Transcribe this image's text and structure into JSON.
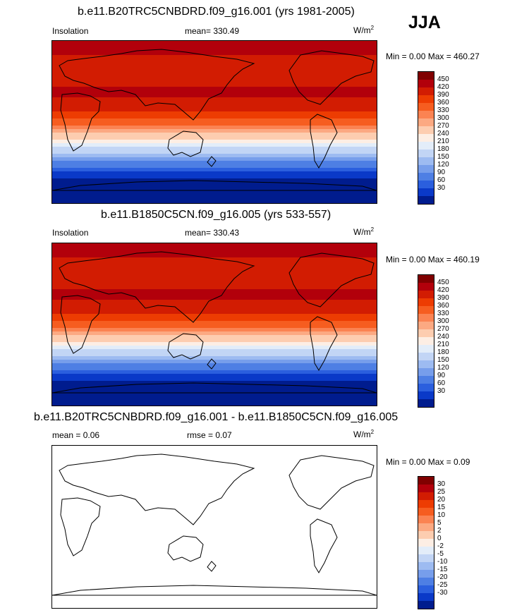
{
  "season": "JJA",
  "panels": [
    {
      "title": "b.e11.B20TRC5CNBDRD.f09_g16.001 (yrs 1981-2005)",
      "left_label": "Insolation",
      "center_label": "mean= 330.49",
      "units_base": "W/m",
      "units_exp": "2",
      "minmax": "Min =   0.00 Max = 460.27",
      "colorbar_labels": [
        "450",
        "420",
        "390",
        "360",
        "330",
        "300",
        "270",
        "240",
        "210",
        "180",
        "150",
        "120",
        "90",
        "60",
        "30"
      ],
      "colorbar_colors": [
        "#800000",
        "#b2000b",
        "#d21c02",
        "#ed3c02",
        "#f65d20",
        "#fb8352",
        "#fca982",
        "#fdcdb0",
        "#fdeee4",
        "#e3edf9",
        "#c2d5f5",
        "#9dbbf1",
        "#779eeb",
        "#4e7fe4",
        "#2b5fde",
        "#0a39c8",
        "#001c8e"
      ]
    },
    {
      "title": "b.e11.B1850C5CN.f09_g16.005 (yrs 533-557)",
      "left_label": "Insolation",
      "center_label": "mean= 330.43",
      "units_base": "W/m",
      "units_exp": "2",
      "minmax": "Min =   0.00 Max = 460.19",
      "colorbar_labels": [
        "450",
        "420",
        "390",
        "360",
        "330",
        "300",
        "270",
        "240",
        "210",
        "180",
        "150",
        "120",
        "90",
        "60",
        "30"
      ],
      "colorbar_colors": [
        "#800000",
        "#b2000b",
        "#d21c02",
        "#ed3c02",
        "#f65d20",
        "#fb8352",
        "#fca982",
        "#fdcdb0",
        "#fdeee4",
        "#e3edf9",
        "#c2d5f5",
        "#9dbbf1",
        "#779eeb",
        "#4e7fe4",
        "#2b5fde",
        "#0a39c8",
        "#001c8e"
      ]
    },
    {
      "title": "b.e11.B20TRC5CNBDRD.f09_g16.001 - b.e11.B1850C5CN.f09_g16.005",
      "left_label": "mean =   0.06",
      "center_label": "rmse =   0.07",
      "units_base": "W/m",
      "units_exp": "2",
      "minmax": "Min =   0.00 Max =   0.09",
      "colorbar_labels": [
        "30",
        "25",
        "20",
        "15",
        "10",
        "5",
        "2",
        "0",
        "-2",
        "-5",
        "-10",
        "-15",
        "-20",
        "-25",
        "-30"
      ],
      "colorbar_colors": [
        "#800000",
        "#b2000b",
        "#d21c02",
        "#ed3c02",
        "#f65d20",
        "#fb8352",
        "#fca982",
        "#fdcdb0",
        "#fdeee4",
        "#e3edf9",
        "#c2d5f5",
        "#9dbbf1",
        "#779eeb",
        "#4e7fe4",
        "#2b5fde",
        "#0a39c8",
        "#001c8e"
      ]
    }
  ],
  "chart_data": [
    {
      "type": "heatmap",
      "title": "b.e11.B20TRC5CNBDRD.f09_g16.001 (yrs 1981-2005)",
      "variable": "Insolation",
      "units": "W/m^2",
      "season": "JJA",
      "mean": 330.49,
      "min": 0.0,
      "max": 460.27,
      "latitudes": [
        90,
        80,
        70,
        60,
        50,
        40,
        30,
        20,
        10,
        0,
        -10,
        -20,
        -30,
        -40,
        -50,
        -60,
        -70,
        -80,
        -90
      ],
      "zonal_values": [
        455,
        455,
        445,
        425,
        432,
        452,
        455,
        440,
        410,
        370,
        320,
        260,
        200,
        140,
        90,
        45,
        10,
        0,
        0
      ],
      "colorbar_levels": [
        30,
        60,
        90,
        120,
        150,
        180,
        210,
        240,
        270,
        300,
        330,
        360,
        390,
        420,
        450
      ]
    },
    {
      "type": "heatmap",
      "title": "b.e11.B1850C5CN.f09_g16.005 (yrs 533-557)",
      "variable": "Insolation",
      "units": "W/m^2",
      "season": "JJA",
      "mean": 330.43,
      "min": 0.0,
      "max": 460.19,
      "latitudes": [
        90,
        80,
        70,
        60,
        50,
        40,
        30,
        20,
        10,
        0,
        -10,
        -20,
        -30,
        -40,
        -50,
        -60,
        -70,
        -80,
        -90
      ],
      "zonal_values": [
        455,
        455,
        445,
        425,
        432,
        452,
        455,
        440,
        410,
        370,
        320,
        260,
        200,
        140,
        90,
        45,
        10,
        0,
        0
      ],
      "colorbar_levels": [
        30,
        60,
        90,
        120,
        150,
        180,
        210,
        240,
        270,
        300,
        330,
        360,
        390,
        420,
        450
      ]
    },
    {
      "type": "heatmap",
      "title": "b.e11.B20TRC5CNBDRD.f09_g16.001 - b.e11.B1850C5CN.f09_g16.005",
      "units": "W/m^2",
      "mean": 0.06,
      "rmse": 0.07,
      "min": 0.0,
      "max": 0.09,
      "colorbar_levels": [
        -30,
        -25,
        -20,
        -15,
        -10,
        -5,
        -2,
        0,
        2,
        5,
        10,
        15,
        20,
        25,
        30
      ]
    }
  ]
}
